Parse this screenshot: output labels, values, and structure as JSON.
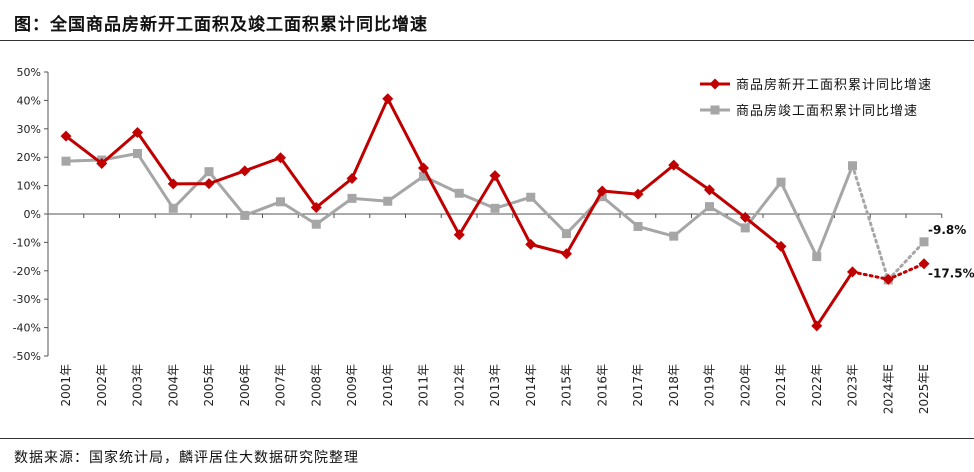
{
  "header": {
    "title": "图：全国商品房新开工面积及竣工面积累计同比增速"
  },
  "footer": {
    "source": "数据来源：国家统计局，麟评居住大数据研究院整理"
  },
  "chart_data": {
    "type": "line",
    "title": "图：全国商品房新开工面积及竣工面积累计同比增速",
    "xlabel": "",
    "ylabel": "",
    "categories": [
      "2001年",
      "2002年",
      "2003年",
      "2004年",
      "2005年",
      "2006年",
      "2007年",
      "2008年",
      "2009年",
      "2010年",
      "2011年",
      "2012年",
      "2013年",
      "2014年",
      "2015年",
      "2016年",
      "2017年",
      "2018年",
      "2019年",
      "2020年",
      "2021年",
      "2022年",
      "2023年",
      "2024年E",
      "2025年E"
    ],
    "y_ticks": [
      "50%",
      "40%",
      "30%",
      "20%",
      "10%",
      "0%",
      "-10%",
      "-20%",
      "-30%",
      "-40%",
      "-50%"
    ],
    "ylim": [
      -50,
      50
    ],
    "legend_position": "top-right",
    "grid": false,
    "series": [
      {
        "name": "商品房新开工面积累计同比增速",
        "color": "#c00000",
        "marker": "diamond",
        "values": [
          27.4,
          17.8,
          28.7,
          10.6,
          10.7,
          15.2,
          19.8,
          2.3,
          12.5,
          40.6,
          16.2,
          -7.3,
          13.5,
          -10.7,
          -14.0,
          8.1,
          7.0,
          17.2,
          8.5,
          -1.2,
          -11.4,
          -39.4,
          -20.4,
          -23.0,
          -17.5
        ],
        "forecast_from_index": 22,
        "end_label": "-17.5%"
      },
      {
        "name": "商品房竣工面积累计同比增速",
        "color": "#a6a6a6",
        "marker": "square",
        "values": [
          18.6,
          19.0,
          21.3,
          2.0,
          14.9,
          -0.5,
          4.3,
          -3.6,
          5.5,
          4.5,
          13.3,
          7.3,
          2.0,
          5.9,
          -6.9,
          6.1,
          -4.4,
          -7.8,
          2.6,
          -4.9,
          11.2,
          -15.0,
          17.0,
          -23.2,
          -9.8
        ],
        "forecast_from_index": 22,
        "end_label": "-9.8%"
      }
    ]
  }
}
